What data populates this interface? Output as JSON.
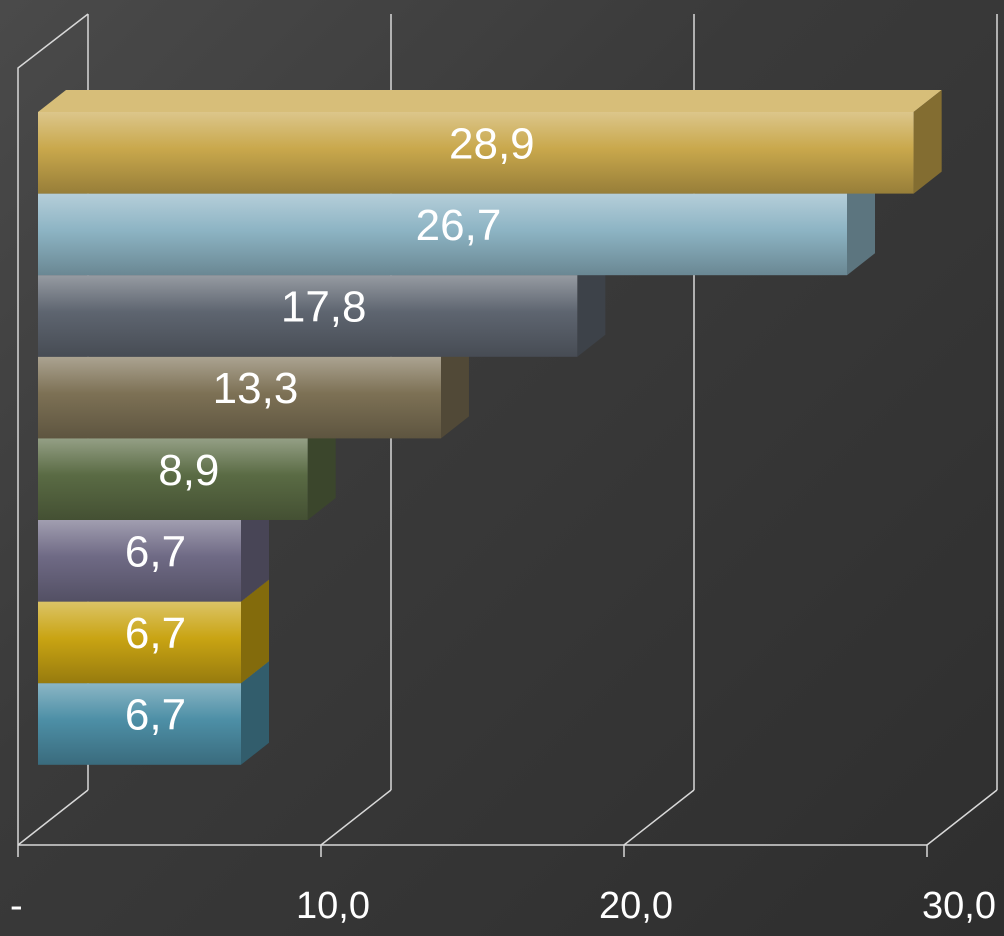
{
  "chart_data": {
    "type": "bar",
    "orientation": "horizontal",
    "style": "3d",
    "values": [
      28.9,
      26.7,
      17.8,
      13.3,
      8.9,
      6.7,
      6.7,
      6.7
    ],
    "value_labels": [
      "28,9",
      "26,7",
      "17,8",
      "13,3",
      "8,9",
      "6,7",
      "6,7",
      "6,7"
    ],
    "bar_colors": [
      "#c9a84c",
      "#8db4c4",
      "#5e6570",
      "#7d7155",
      "#5a6b44",
      "#6f6a85",
      "#c9a413",
      "#4d8fa6"
    ],
    "xlim": [
      0,
      30
    ],
    "x_ticks": [
      0,
      10,
      20,
      30
    ],
    "x_tick_labels": [
      "-",
      "10,0",
      "20,0",
      "30,0"
    ],
    "grid": true,
    "legend": "none",
    "title": "",
    "xlabel": "",
    "ylabel": ""
  }
}
